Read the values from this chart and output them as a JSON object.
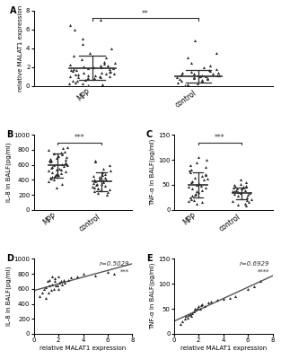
{
  "panel_A": {
    "MPP": [
      0.1,
      0.2,
      0.3,
      0.3,
      0.4,
      0.5,
      0.5,
      0.6,
      0.7,
      0.8,
      0.8,
      0.9,
      0.9,
      1.0,
      1.0,
      1.0,
      1.1,
      1.1,
      1.2,
      1.2,
      1.3,
      1.3,
      1.4,
      1.4,
      1.5,
      1.5,
      1.6,
      1.7,
      1.7,
      1.8,
      1.8,
      1.9,
      1.9,
      2.0,
      2.0,
      2.1,
      2.2,
      2.2,
      2.3,
      2.4,
      2.5,
      2.6,
      2.8,
      3.0,
      3.2,
      3.5,
      4.0,
      4.5,
      5.0,
      6.0,
      6.5,
      7.0
    ],
    "control": [
      0.1,
      0.2,
      0.3,
      0.4,
      0.5,
      0.5,
      0.6,
      0.7,
      0.7,
      0.8,
      0.8,
      0.9,
      0.9,
      1.0,
      1.0,
      1.0,
      1.1,
      1.1,
      1.1,
      1.2,
      1.2,
      1.3,
      1.3,
      1.4,
      1.4,
      1.5,
      1.6,
      1.7,
      1.8,
      2.0,
      2.2,
      2.5,
      3.0,
      3.5,
      4.8
    ],
    "MPP_mean": 1.9,
    "MPP_sd": 1.3,
    "control_mean": 1.0,
    "control_sd": 0.65,
    "ylabel": "relative MALAT1 expression",
    "ylim": [
      0,
      8
    ],
    "yticks": [
      0,
      2,
      4,
      6,
      8
    ],
    "sig": "**"
  },
  "panel_B": {
    "MPP": [
      300,
      350,
      380,
      400,
      420,
      430,
      440,
      450,
      460,
      470,
      480,
      490,
      500,
      510,
      520,
      530,
      540,
      550,
      560,
      570,
      580,
      590,
      600,
      610,
      620,
      630,
      640,
      650,
      660,
      670,
      680,
      690,
      700,
      720,
      740,
      750,
      760,
      780,
      800,
      820,
      840
    ],
    "control": [
      200,
      220,
      240,
      250,
      260,
      270,
      280,
      290,
      300,
      310,
      320,
      330,
      340,
      350,
      360,
      370,
      380,
      390,
      400,
      410,
      420,
      430,
      440,
      450,
      460,
      480,
      500,
      520,
      550,
      600,
      640,
      660
    ],
    "MPP_mean": 590,
    "MPP_sd": 160,
    "control_mean": 375,
    "control_sd": 120,
    "ylabel": "IL-8 in BALF(pg/ml)",
    "ylim": [
      0,
      1000
    ],
    "yticks": [
      0,
      200,
      400,
      600,
      800,
      1000
    ],
    "sig": "***"
  },
  "panel_C": {
    "MPP": [
      12,
      15,
      18,
      20,
      22,
      25,
      28,
      30,
      32,
      35,
      38,
      40,
      42,
      45,
      47,
      48,
      50,
      52,
      55,
      57,
      60,
      62,
      65,
      67,
      70,
      72,
      75,
      78,
      80,
      85,
      90,
      95,
      100,
      105
    ],
    "control": [
      8,
      10,
      12,
      15,
      18,
      20,
      22,
      25,
      28,
      30,
      32,
      33,
      34,
      35,
      36,
      37,
      38,
      39,
      40,
      42,
      43,
      44,
      45,
      46,
      47,
      48,
      50,
      52,
      55,
      60
    ],
    "MPP_mean": 50,
    "MPP_sd": 25,
    "control_mean": 33,
    "control_sd": 12,
    "ylabel": "TNF-α in BALF(pg/ml)",
    "ylim": [
      0,
      150
    ],
    "yticks": [
      0,
      50,
      100,
      150
    ],
    "sig": "***"
  },
  "panel_D": {
    "x": [
      0.5,
      0.7,
      0.8,
      1.0,
      1.0,
      1.1,
      1.2,
      1.3,
      1.3,
      1.4,
      1.5,
      1.5,
      1.6,
      1.7,
      1.7,
      1.8,
      1.9,
      2.0,
      2.0,
      2.1,
      2.2,
      2.3,
      2.4,
      2.5,
      2.8,
      3.0,
      3.5,
      4.0,
      5.0,
      6.0,
      6.5
    ],
    "y": [
      500,
      550,
      600,
      480,
      620,
      700,
      550,
      640,
      720,
      580,
      660,
      760,
      600,
      700,
      740,
      640,
      650,
      600,
      760,
      680,
      700,
      660,
      720,
      680,
      720,
      750,
      760,
      800,
      780,
      820,
      800
    ],
    "r": "r=0.5029",
    "sig": "***",
    "xlabel": "relative MALAT1 expression",
    "ylabel": "IL-8 in BALF(pg/ml)",
    "ylim": [
      0,
      1000
    ],
    "yticks": [
      0,
      200,
      400,
      600,
      800,
      1000
    ],
    "xlim": [
      0,
      8
    ],
    "xticks": [
      0,
      2,
      4,
      6,
      8
    ]
  },
  "panel_E": {
    "x": [
      0.5,
      0.7,
      0.9,
      1.0,
      1.1,
      1.2,
      1.3,
      1.4,
      1.5,
      1.6,
      1.7,
      1.8,
      1.9,
      2.0,
      2.1,
      2.2,
      2.3,
      2.5,
      2.8,
      3.0,
      3.5,
      4.0,
      4.5,
      5.0,
      6.0,
      6.5,
      7.0
    ],
    "y": [
      20,
      25,
      30,
      35,
      32,
      38,
      40,
      35,
      42,
      45,
      50,
      48,
      52,
      55,
      50,
      58,
      60,
      55,
      62,
      65,
      68,
      70,
      72,
      75,
      90,
      95,
      105
    ],
    "r": "r=0.6929",
    "sig": "****",
    "xlabel": "relative MALAT1 expression",
    "ylabel": "TNF-α in BALF(pg/ml)",
    "ylim": [
      0,
      150
    ],
    "yticks": [
      0,
      50,
      100,
      150
    ],
    "xlim": [
      0,
      8
    ],
    "xticks": [
      0,
      2,
      4,
      6,
      8
    ]
  },
  "bg_color": "#ffffff",
  "marker_color": "#2d2d2d",
  "line_color": "#555555"
}
